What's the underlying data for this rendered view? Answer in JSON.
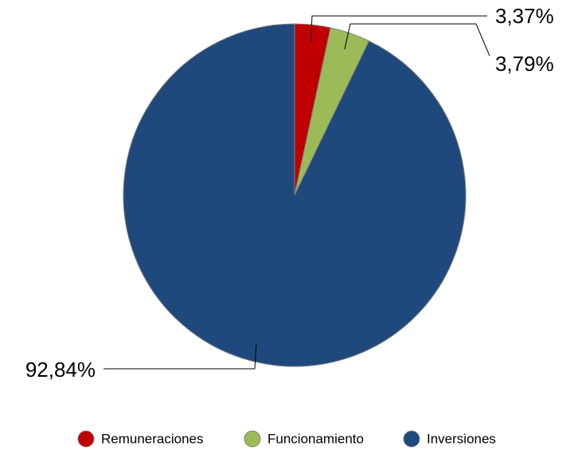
{
  "chart_data": {
    "type": "pie",
    "categories": [
      "Remuneraciones",
      "Funcionamiento",
      "Inversiones"
    ],
    "values": [
      3.37,
      3.79,
      92.84
    ],
    "value_labels": [
      "3,37%",
      "3,79%",
      "92,84%"
    ],
    "colors": [
      "#c00000",
      "#9bbb59",
      "#1f497d"
    ],
    "legend": "bottom"
  }
}
